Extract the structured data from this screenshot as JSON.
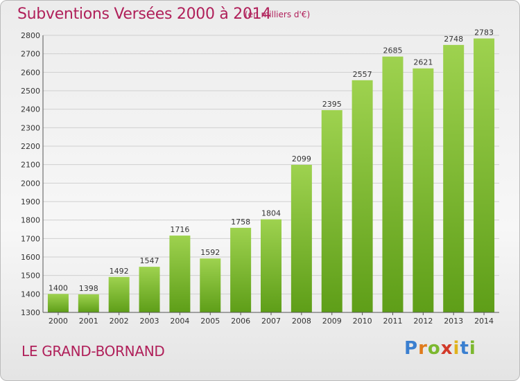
{
  "title": "Subventions Versées 2000 à 2014",
  "subtitle": "(en milliers d'€)",
  "place": "LE GRAND-BORNAND",
  "logo": {
    "letters": [
      "P",
      "r",
      "o",
      "x",
      "i",
      "t",
      "i"
    ],
    "colors": [
      "#3a7fd0",
      "#e07b1c",
      "#7cb82f",
      "#d23a2a",
      "#e0b21c",
      "#3a7fd0",
      "#7cb82f"
    ]
  },
  "colors": {
    "bar_top": "#9ed24f",
    "bar_bottom": "#5e9e18",
    "grid": "#cfcfcf",
    "accent": "#b0205a"
  },
  "chart_data": {
    "type": "bar",
    "title": "Subventions Versées 2000 à 2014",
    "ylabel": "(en milliers d'€)",
    "categories": [
      "2000",
      "2001",
      "2002",
      "2003",
      "2004",
      "2005",
      "2006",
      "2007",
      "2008",
      "2009",
      "2010",
      "2011",
      "2012",
      "2013",
      "2014"
    ],
    "values": [
      1400,
      1398,
      1492,
      1547,
      1716,
      1592,
      1758,
      1804,
      2099,
      2395,
      2557,
      2685,
      2621,
      2748,
      2783
    ],
    "ylim": [
      1300,
      2800
    ],
    "yticks": [
      1300,
      1400,
      1500,
      1600,
      1700,
      1800,
      1900,
      2000,
      2100,
      2200,
      2300,
      2400,
      2500,
      2600,
      2700,
      2800
    ],
    "grid": true
  }
}
